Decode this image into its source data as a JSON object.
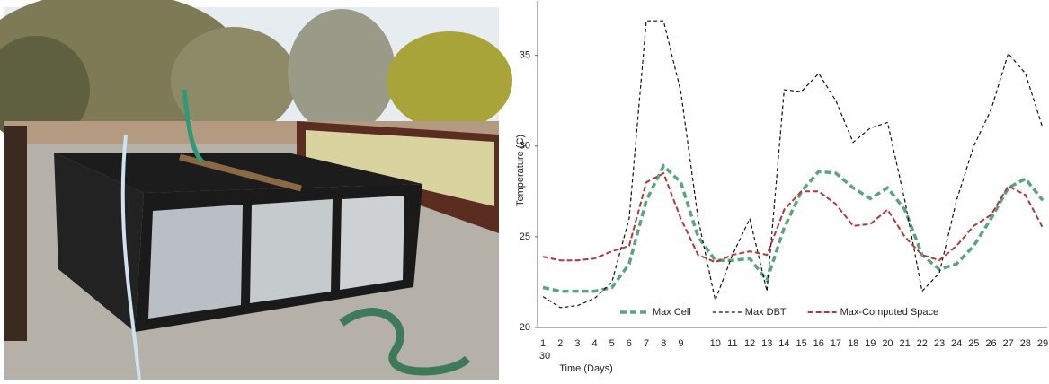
{
  "chart_data": {
    "type": "line",
    "xlabel": "Time (Days)",
    "ylabel": "Temperature (C)",
    "categories": [
      "1",
      "2",
      "3",
      "4",
      "5",
      "6",
      "7",
      "8",
      "9",
      null,
      "10",
      "11",
      "12",
      "13",
      "14",
      "15",
      "16",
      "17",
      "18",
      "19",
      "20",
      "21",
      "22",
      "23",
      "24",
      "25",
      "26",
      "27",
      "28",
      "29"
    ],
    "annotations": [
      "30"
    ],
    "ylim": [
      20,
      38
    ],
    "yticks": [
      20,
      25,
      30,
      35
    ],
    "legend": "bottom",
    "series": [
      {
        "name": "Max Cell",
        "color": "#5aa57c",
        "values": [
          22.2,
          22,
          22,
          22,
          22.2,
          23.5,
          27,
          28.9,
          28,
          25,
          23.7,
          23.7,
          23.8,
          22.6,
          25.5,
          27.5,
          28.6,
          28.5,
          27.7,
          27.1,
          27.7,
          26.5,
          24,
          23.2,
          23.5,
          24.5,
          26,
          27.7,
          28.2,
          27
        ]
      },
      {
        "name": "Max DBT",
        "color": "#111111",
        "values": [
          21.7,
          21.1,
          21.2,
          21.6,
          22.5,
          26,
          36.9,
          36.9,
          33,
          26,
          21.5,
          24,
          26,
          22,
          33.1,
          33,
          34,
          32.5,
          30.2,
          31,
          31.3,
          27,
          22,
          23,
          27,
          30,
          32,
          35.1,
          34,
          31
        ]
      },
      {
        "name": "Max-Computed Space",
        "color": "#b03a3a",
        "values": [
          23.9,
          23.7,
          23.7,
          23.8,
          24.2,
          24.5,
          28,
          28.5,
          26,
          24,
          23.6,
          24,
          24.2,
          24,
          26.5,
          27.5,
          27.5,
          26.8,
          25.6,
          25.7,
          26.5,
          25,
          24,
          23.7,
          24.5,
          25.6,
          26.2,
          27.8,
          27.3,
          25.5
        ]
      }
    ]
  }
}
